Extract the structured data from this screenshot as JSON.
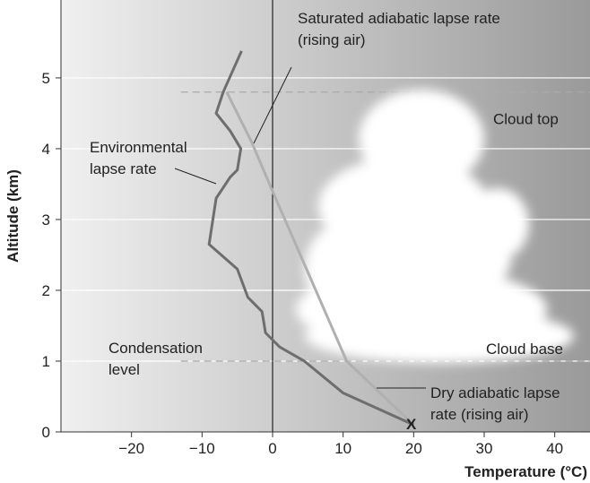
{
  "chart_data": {
    "type": "line",
    "xlabel": "Temperature (°C)",
    "ylabel": "Altitude (km)",
    "xlim": [
      -30,
      45
    ],
    "ylim": [
      0,
      6.1
    ],
    "xticks": [
      {
        "value": -20,
        "label": "−20"
      },
      {
        "value": -10,
        "label": "−10"
      },
      0,
      10,
      20,
      30,
      40
    ],
    "yticks": [
      0,
      1,
      2,
      3,
      4,
      5
    ],
    "grid": true,
    "series": [
      {
        "name": "Environmental lapse rate",
        "color": "#6e6e6e",
        "x": [
          20,
          10,
          4.5,
          1,
          -1,
          -1.5,
          -3.5,
          -5,
          -9,
          -8,
          -6,
          -5,
          -4.5,
          -6,
          -8,
          -7,
          -4.4
        ],
        "values": [
          0.1,
          0.55,
          1,
          1.2,
          1.4,
          1.7,
          1.9,
          2.3,
          2.65,
          3.3,
          3.6,
          3.7,
          4,
          4.25,
          4.5,
          4.8,
          5.38
        ]
      },
      {
        "name": "Dry / saturated adiabatic lapse rate",
        "color": "#b0b0b0",
        "x": [
          20,
          10.5,
          0,
          -3,
          -6.5
        ],
        "values": [
          0.1,
          1,
          3.4,
          4.1,
          4.8
        ]
      }
    ],
    "reference_lines": [
      {
        "value": 4.8,
        "label": "Cloud top"
      },
      {
        "value": 1,
        "label": "Cloud base"
      }
    ],
    "annotations": [
      {
        "lines": [
          "Saturated adiabatic lapse rate",
          "(rising air)"
        ]
      },
      {
        "lines": [
          "Environmental",
          "lapse rate"
        ]
      },
      {
        "lines": [
          "Condensation",
          "level"
        ]
      },
      {
        "lines": [
          "Dry adiabatic lapse",
          "rate (rising air)"
        ]
      },
      {
        "lines": [
          "X"
        ]
      }
    ]
  }
}
